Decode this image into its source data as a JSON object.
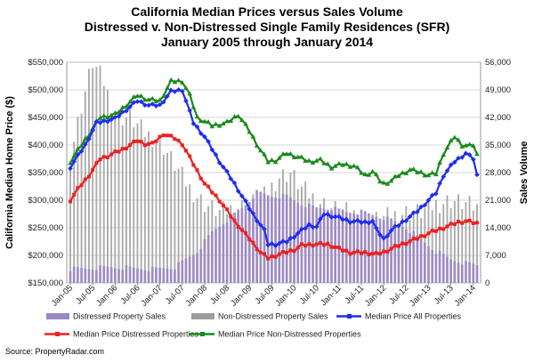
{
  "chart_data": {
    "type": "line",
    "title": "California Median Prices versus Sales Volume",
    "subtitle_1": "Distressed v. Non-Distressed Single Family Residences (SFR)",
    "subtitle_2": "January 2005 through January 2014",
    "ylabel_left": "California Median Home Price ($)",
    "ylabel_right": "Sales Volume",
    "ylim_left": [
      150000,
      550000
    ],
    "ylim_right": [
      0,
      56000
    ],
    "yticks_left": [
      "$150,000",
      "$200,000",
      "$250,000",
      "$300,000",
      "$350,000",
      "$400,000",
      "$450,000",
      "$500,000",
      "$550,000"
    ],
    "yticks_right": [
      "0",
      "7,000",
      "14,000",
      "21,000",
      "28,000",
      "35,000",
      "42,000",
      "49,000",
      "56,000"
    ],
    "xticks": [
      "Jan-05",
      "Jul-05",
      "Jan-06",
      "Jul-06",
      "Jan-07",
      "Jul-07",
      "Jan-08",
      "Jul-08",
      "Jan-09",
      "Jul-09",
      "Jan-10",
      "Jul-10",
      "Jan-11",
      "Jul-11",
      "Jan-12",
      "Jul-12",
      "Jan-13",
      "Jul-13",
      "Jan-14"
    ],
    "grid": true,
    "legend_position": "bottom",
    "series_keypoints": {
      "median_price_all": [
        [
          0,
          360000
        ],
        [
          4,
          400000
        ],
        [
          7,
          440000
        ],
        [
          12,
          448000
        ],
        [
          18,
          480000
        ],
        [
          21,
          472000
        ],
        [
          24,
          472000
        ],
        [
          27,
          497000
        ],
        [
          30,
          500000
        ],
        [
          33,
          440000
        ],
        [
          36,
          415000
        ],
        [
          40,
          370000
        ],
        [
          44,
          330000
        ],
        [
          48,
          285000
        ],
        [
          52,
          245000
        ],
        [
          53,
          220000
        ],
        [
          55,
          220000
        ],
        [
          58,
          225000
        ],
        [
          62,
          245000
        ],
        [
          64,
          255000
        ],
        [
          66,
          252000
        ],
        [
          68,
          275000
        ],
        [
          71,
          270000
        ],
        [
          75,
          262000
        ],
        [
          79,
          260000
        ],
        [
          81,
          262000
        ],
        [
          82,
          247000
        ],
        [
          84,
          230000
        ],
        [
          86,
          245000
        ],
        [
          90,
          265000
        ],
        [
          93,
          280000
        ],
        [
          96,
          300000
        ],
        [
          98,
          313000
        ],
        [
          100,
          345000
        ],
        [
          103,
          370000
        ],
        [
          106,
          385000
        ],
        [
          108,
          375000
        ],
        [
          109,
          345000
        ]
      ],
      "median_price_distressed": [
        [
          0,
          300000
        ],
        [
          2,
          320000
        ],
        [
          5,
          345000
        ],
        [
          8,
          375000
        ],
        [
          10,
          380000
        ],
        [
          14,
          392000
        ],
        [
          18,
          408000
        ],
        [
          20,
          402000
        ],
        [
          22,
          402000
        ],
        [
          25,
          420000
        ],
        [
          28,
          412000
        ],
        [
          30,
          402000
        ],
        [
          33,
          365000
        ],
        [
          36,
          330000
        ],
        [
          40,
          300000
        ],
        [
          44,
          262000
        ],
        [
          48,
          230000
        ],
        [
          51,
          205000
        ],
        [
          53,
          195000
        ],
        [
          56,
          202000
        ],
        [
          60,
          210000
        ],
        [
          62,
          218000
        ],
        [
          65,
          220000
        ],
        [
          69,
          220000
        ],
        [
          72,
          212000
        ],
        [
          75,
          205000
        ],
        [
          79,
          205000
        ],
        [
          82,
          202000
        ],
        [
          84,
          206000
        ],
        [
          88,
          218000
        ],
        [
          92,
          228000
        ],
        [
          96,
          240000
        ],
        [
          100,
          250000
        ],
        [
          104,
          260000
        ],
        [
          106,
          262000
        ],
        [
          109,
          258000
        ]
      ],
      "median_price_non_distressed": [
        [
          0,
          370000
        ],
        [
          4,
          410000
        ],
        [
          8,
          450000
        ],
        [
          12,
          455000
        ],
        [
          18,
          490000
        ],
        [
          21,
          482000
        ],
        [
          24,
          480000
        ],
        [
          27,
          515000
        ],
        [
          30,
          516000
        ],
        [
          32,
          490000
        ],
        [
          34,
          450000
        ],
        [
          38,
          435000
        ],
        [
          42,
          440000
        ],
        [
          45,
          455000
        ],
        [
          48,
          425000
        ],
        [
          51,
          390000
        ],
        [
          53,
          370000
        ],
        [
          55,
          372000
        ],
        [
          58,
          385000
        ],
        [
          61,
          378000
        ],
        [
          64,
          370000
        ],
        [
          67,
          372000
        ],
        [
          70,
          360000
        ],
        [
          73,
          365000
        ],
        [
          76,
          362000
        ],
        [
          79,
          345000
        ],
        [
          81,
          352000
        ],
        [
          83,
          335000
        ],
        [
          84,
          330000
        ],
        [
          86,
          335000
        ],
        [
          88,
          345000
        ],
        [
          91,
          355000
        ],
        [
          94,
          350000
        ],
        [
          96,
          345000
        ],
        [
          98,
          348000
        ],
        [
          100,
          385000
        ],
        [
          102,
          405000
        ],
        [
          103,
          415000
        ],
        [
          105,
          400000
        ],
        [
          107,
          398000
        ],
        [
          108,
          400000
        ],
        [
          109,
          382000
        ]
      ],
      "distressed_sales": [
        [
          0,
          3500
        ],
        [
          11,
          4000
        ],
        [
          22,
          3500
        ],
        [
          28,
          4000
        ],
        [
          34,
          8000
        ],
        [
          38,
          13000
        ],
        [
          42,
          16000
        ],
        [
          46,
          19000
        ],
        [
          50,
          23000
        ],
        [
          54,
          22000
        ],
        [
          58,
          22000
        ],
        [
          62,
          20000
        ],
        [
          66,
          19000
        ],
        [
          70,
          19000
        ],
        [
          74,
          18000
        ],
        [
          78,
          18000
        ],
        [
          82,
          17000
        ],
        [
          86,
          16000
        ],
        [
          90,
          14000
        ],
        [
          94,
          11000
        ],
        [
          98,
          8000
        ],
        [
          102,
          6000
        ],
        [
          106,
          5000
        ],
        [
          109,
          4500
        ]
      ],
      "non_distressed_sales": [
        [
          0,
          32000
        ],
        [
          3,
          45000
        ],
        [
          6,
          56000
        ],
        [
          9,
          51000
        ],
        [
          12,
          42000
        ],
        [
          16,
          42000
        ],
        [
          20,
          38000
        ],
        [
          24,
          36000
        ],
        [
          28,
          30000
        ],
        [
          32,
          24000
        ],
        [
          36,
          20000
        ],
        [
          40,
          18000
        ],
        [
          44,
          19000
        ],
        [
          48,
          20000
        ],
        [
          52,
          22000
        ],
        [
          56,
          27000
        ],
        [
          59,
          28000
        ],
        [
          62,
          24000
        ],
        [
          66,
          21000
        ],
        [
          70,
          19000
        ],
        [
          74,
          18000
        ],
        [
          78,
          17000
        ],
        [
          82,
          16000
        ],
        [
          86,
          17000
        ],
        [
          90,
          18000
        ],
        [
          94,
          18000
        ],
        [
          98,
          20000
        ],
        [
          102,
          21000
        ],
        [
          106,
          20000
        ],
        [
          109,
          19000
        ]
      ]
    },
    "x_index_range": [
      0,
      109
    ],
    "series": [
      {
        "name": "Distressed Property Sales",
        "kind": "bar",
        "axis": "right",
        "color": "#9a86c2"
      },
      {
        "name": "Non-Distressed Property Sales",
        "kind": "bar",
        "axis": "right",
        "color": "#9c9c9c"
      },
      {
        "name": "Median Price All Properties",
        "kind": "line",
        "axis": "left",
        "color": "#1f2cf0"
      },
      {
        "name": "Median Price Distressed Properties",
        "kind": "line",
        "axis": "left",
        "color": "#ee1f1f"
      },
      {
        "name": "Median Price Non-Distressed Properties",
        "kind": "line",
        "axis": "left",
        "color": "#1a8a1a"
      }
    ]
  },
  "source": "Source: PropertyRadar.com"
}
